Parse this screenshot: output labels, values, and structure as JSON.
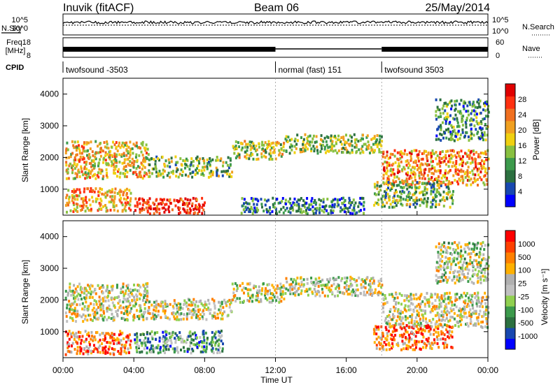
{
  "header": {
    "site": "Inuvik (fitACF)",
    "beam": "Beam 06",
    "date": "25/May/2014"
  },
  "top_panels": {
    "nsky_label": "N.Sky",
    "nsearch_label": "N.Search",
    "log_tick_high": "10^5",
    "log_tick_low": "10^0",
    "freq_label_1": "Freq.",
    "freq_label_2": "[MHz]",
    "freq_ticks": [
      "8",
      "18"
    ],
    "nave_label": "Nave",
    "nave_ticks": [
      "0",
      "60"
    ],
    "cpid_label": "CPID",
    "cpid_segments": [
      {
        "label": "twofsound -3503",
        "start_hour": 0
      },
      {
        "label": "normal (fast) 151",
        "start_hour": 12
      },
      {
        "label": "twofsound 3503",
        "start_hour": 18
      }
    ]
  },
  "chart_data": [
    {
      "type": "heatmap",
      "ylabel": "Slant Range [km]",
      "yticks": [
        1000,
        2000,
        3000,
        4000
      ],
      "ylim": [
        180,
        4500
      ],
      "colorbar_label": "Power [dB]",
      "colorbar_ticks": [
        "4",
        "8",
        "12",
        "16",
        "20",
        "24",
        "28"
      ],
      "colorbar_colors": [
        "#0000ff",
        "#1848b0",
        "#2c7040",
        "#3c9a4c",
        "#88c040",
        "#f0d010",
        "#f0a020",
        "#f07020",
        "#ff3010",
        "#e00000"
      ],
      "scatter_regions": [
        {
          "t0": 0.1,
          "t1": 4.8,
          "r0": 1300,
          "r1": 2500,
          "level": 0.6
        },
        {
          "t0": 4.8,
          "t1": 9.5,
          "r0": 1350,
          "r1": 2000,
          "level": 0.4
        },
        {
          "t0": 9.5,
          "t1": 12.5,
          "r0": 1900,
          "r1": 2500,
          "level": 0.5
        },
        {
          "t0": 12.5,
          "t1": 18.0,
          "r0": 2100,
          "r1": 2700,
          "level": 0.45
        },
        {
          "t0": 18.0,
          "t1": 24.0,
          "r0": 1100,
          "r1": 2200,
          "level": 0.7
        },
        {
          "t0": 0.1,
          "t1": 3.8,
          "r0": 250,
          "r1": 1000,
          "level": 0.65
        },
        {
          "t0": 4.0,
          "t1": 8.0,
          "r0": 200,
          "r1": 700,
          "level": 0.9
        },
        {
          "t0": 10.0,
          "t1": 17.0,
          "r0": 200,
          "r1": 700,
          "level": 0.25
        },
        {
          "t0": 17.5,
          "t1": 22.0,
          "r0": 400,
          "r1": 1200,
          "level": 0.4
        },
        {
          "t0": 21.0,
          "t1": 24.0,
          "r0": 2500,
          "r1": 3800,
          "level": 0.3
        }
      ]
    },
    {
      "type": "heatmap",
      "ylabel": "Slant Range [km]",
      "yticks": [
        1000,
        2000,
        3000,
        4000
      ],
      "ylim": [
        180,
        4500
      ],
      "colorbar_label": "Velocity [m s⁻¹]",
      "colorbar_ticks": [
        "1000",
        "500",
        "100",
        "25",
        "-25",
        "-100",
        "-500",
        "-1000"
      ],
      "colorbar_colors": [
        "#0000ff",
        "#1848b0",
        "#2c7040",
        "#3c9a4c",
        "#90d050",
        "#c0c0c0",
        "#b0b0b0",
        "#ffb000",
        "#ff8000",
        "#ff4000",
        "#ff0000"
      ],
      "scatter_regions": [
        {
          "t0": 0.1,
          "t1": 4.8,
          "r0": 1300,
          "r1": 2500,
          "level": 0.55
        },
        {
          "t0": 4.8,
          "t1": 9.5,
          "r0": 1350,
          "r1": 2000,
          "level": 0.55
        },
        {
          "t0": 9.5,
          "t1": 12.5,
          "r0": 1900,
          "r1": 2500,
          "level": 0.55
        },
        {
          "t0": 12.5,
          "t1": 18.0,
          "r0": 2100,
          "r1": 2700,
          "level": 0.55
        },
        {
          "t0": 18.0,
          "t1": 24.0,
          "r0": 1100,
          "r1": 2200,
          "level": 0.55
        },
        {
          "t0": 0.1,
          "t1": 3.8,
          "r0": 250,
          "r1": 1000,
          "level": 0.8
        },
        {
          "t0": 4.0,
          "t1": 9.0,
          "r0": 300,
          "r1": 1000,
          "level": 0.3
        },
        {
          "t0": 17.5,
          "t1": 22.0,
          "r0": 400,
          "r1": 1200,
          "level": 0.8
        },
        {
          "t0": 21.0,
          "t1": 24.0,
          "r0": 2500,
          "r1": 3800,
          "level": 0.5
        }
      ]
    }
  ],
  "x_axis": {
    "label": "Time UT",
    "ticks": [
      "00:00",
      "04:00",
      "08:00",
      "12:00",
      "16:00",
      "20:00",
      "00:00"
    ],
    "xlim_hours": [
      0,
      24
    ]
  }
}
